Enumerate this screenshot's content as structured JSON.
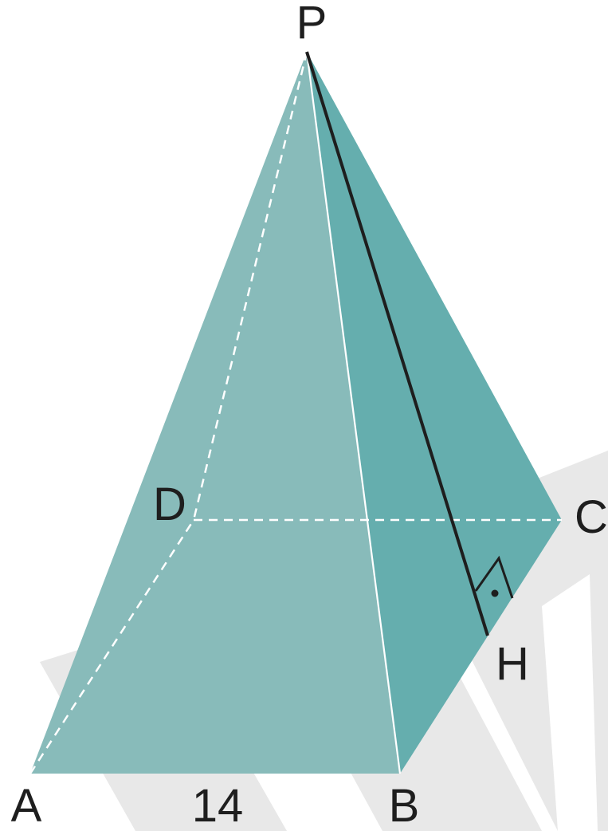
{
  "diagram": {
    "vertices": {
      "P": "P",
      "A": "A",
      "B": "B",
      "C": "C",
      "D": "D",
      "H": "H"
    },
    "edge_label_AB": "14",
    "colors": {
      "face_front": "#84b9b8",
      "face_right": "#60abab",
      "watermark": "#e8e8e8",
      "line": "#1e1e1e",
      "hidden_edge": "#ffffff"
    }
  }
}
